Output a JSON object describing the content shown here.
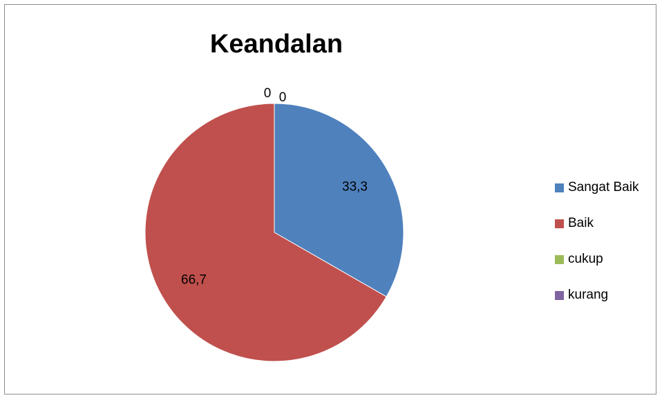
{
  "chart_data": {
    "type": "pie",
    "title": "Keandalan",
    "categories": [
      "Sangat Baik",
      "Baik",
      "cukup",
      "kurang"
    ],
    "values": [
      33.3,
      66.7,
      0,
      0
    ],
    "data_labels": [
      "33,3",
      "66,7",
      "0",
      "0"
    ],
    "colors": [
      "#4f81bd",
      "#c0504d",
      "#9bbb59",
      "#8064a2"
    ],
    "legend_position": "right"
  }
}
